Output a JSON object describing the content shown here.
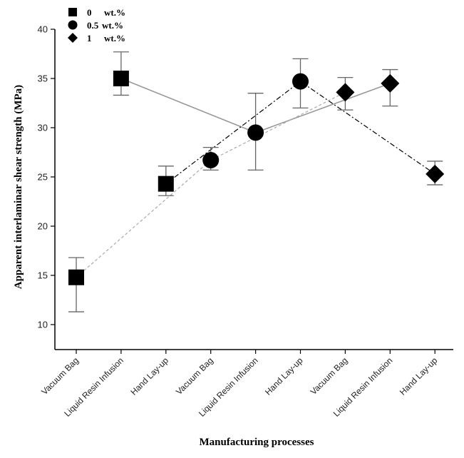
{
  "chart_data": {
    "type": "scatter",
    "title": "",
    "xlabel": "Manufacturing processes",
    "ylabel": "Apparent interlaminar shear strength (MPa)",
    "ylim": [
      7,
      40
    ],
    "yticks": [
      10,
      15,
      20,
      25,
      30,
      35,
      40
    ],
    "categories": [
      "Vacuum Bag",
      "Liquid Resin Infusion",
      "Hand Lay-up",
      "Vacuum Bag",
      "Liquid Resin Infusion",
      "Hand Lay-up",
      "Vacuum Bag",
      "Liquid Resin Infusion",
      "Hand Lay-up"
    ],
    "legend_position": "top-left",
    "series": [
      {
        "name": "0",
        "unit": "wt.%",
        "marker": "square",
        "x_index": [
          0,
          1,
          2
        ],
        "values": [
          14.8,
          35.0,
          24.3
        ],
        "err_low": [
          11.3,
          33.3,
          23.1
        ],
        "err_high": [
          16.8,
          37.7,
          26.1
        ]
      },
      {
        "name": "0.5",
        "unit": "wt.%",
        "marker": "circle",
        "x_index": [
          3,
          4,
          5
        ],
        "values": [
          26.7,
          29.5,
          34.7
        ],
        "err_low": [
          25.7,
          25.7,
          32.0
        ],
        "err_high": [
          28.0,
          33.5,
          37.0
        ]
      },
      {
        "name": "1",
        "unit": "wt.%",
        "marker": "diamond",
        "x_index": [
          6,
          7,
          8
        ],
        "values": [
          33.6,
          34.5,
          25.3
        ],
        "err_low": [
          31.8,
          32.2,
          24.2
        ],
        "err_high": [
          35.1,
          35.9,
          26.6
        ]
      }
    ],
    "connecting_lines": [
      {
        "style": "solid",
        "color": "#999999",
        "points": [
          [
            1,
            35.0
          ],
          [
            4,
            29.5
          ],
          [
            7,
            34.5
          ]
        ]
      },
      {
        "style": "dashdot",
        "color": "#000000",
        "points": [
          [
            2,
            24.3
          ],
          [
            5,
            34.7
          ],
          [
            8,
            25.3
          ]
        ]
      },
      {
        "style": "dashed",
        "color": "#aaaaaa",
        "points": [
          [
            0,
            14.8
          ],
          [
            3,
            26.7
          ],
          [
            6,
            33.6
          ]
        ]
      }
    ]
  }
}
